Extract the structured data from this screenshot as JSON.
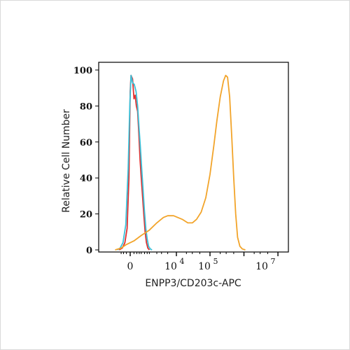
{
  "chart_data": {
    "type": "line",
    "title": "",
    "xlabel": "ENPP3/CD203c-APC",
    "ylabel": "Relative Cell Number",
    "ylim": [
      0,
      100
    ],
    "yticks": [
      "0",
      "20",
      "40",
      "60",
      "80",
      "100"
    ],
    "xticks": [
      {
        "base": "0",
        "exp": ""
      },
      {
        "base": "10",
        "exp": "4"
      },
      {
        "base": "10",
        "exp": "5"
      },
      {
        "base": "10",
        "exp": "7"
      }
    ],
    "x_scale": "biexponential",
    "grid": false,
    "colors": {
      "series1": "#e03030",
      "series2": "#3cc0d8",
      "series3": "#f2a42a"
    },
    "series": [
      {
        "name": "",
        "color": "#e03030",
        "points": [
          [
            -400,
            0
          ],
          [
            -250,
            1
          ],
          [
            -150,
            4
          ],
          [
            -80,
            12
          ],
          [
            -30,
            40
          ],
          [
            0,
            88
          ],
          [
            20,
            97
          ],
          [
            60,
            95
          ],
          [
            100,
            84
          ],
          [
            140,
            86
          ],
          [
            180,
            80
          ],
          [
            230,
            77
          ],
          [
            280,
            65
          ],
          [
            340,
            50
          ],
          [
            400,
            40
          ],
          [
            470,
            30
          ],
          [
            550,
            20
          ],
          [
            640,
            10
          ],
          [
            740,
            4
          ],
          [
            860,
            1
          ],
          [
            1000,
            0
          ]
        ]
      },
      {
        "name": "",
        "color": "#3cc0d8",
        "points": [
          [
            -500,
            0
          ],
          [
            -350,
            1
          ],
          [
            -220,
            4
          ],
          [
            -120,
            14
          ],
          [
            -50,
            45
          ],
          [
            -10,
            80
          ],
          [
            20,
            97
          ],
          [
            60,
            93
          ],
          [
            110,
            92
          ],
          [
            170,
            88
          ],
          [
            230,
            80
          ],
          [
            290,
            68
          ],
          [
            350,
            58
          ],
          [
            420,
            46
          ],
          [
            500,
            34
          ],
          [
            590,
            22
          ],
          [
            690,
            12
          ],
          [
            800,
            6
          ],
          [
            930,
            2
          ],
          [
            1100,
            0.5
          ],
          [
            1300,
            0
          ]
        ]
      },
      {
        "name": "",
        "color": "#f2a42a",
        "points": [
          [
            -650,
            0
          ],
          [
            -300,
            1
          ],
          [
            -100,
            3
          ],
          [
            100,
            5
          ],
          [
            400,
            8
          ],
          [
            1000,
            11
          ],
          [
            2000,
            15
          ],
          [
            3500,
            18
          ],
          [
            5000,
            19
          ],
          [
            8000,
            19
          ],
          [
            11000,
            18
          ],
          [
            15000,
            17
          ],
          [
            22000,
            15
          ],
          [
            30000,
            15
          ],
          [
            40000,
            17
          ],
          [
            55000,
            21
          ],
          [
            75000,
            29
          ],
          [
            100000,
            42
          ],
          [
            130000,
            58
          ],
          [
            160000,
            72
          ],
          [
            200000,
            85
          ],
          [
            250000,
            94
          ],
          [
            290000,
            97
          ],
          [
            330000,
            96
          ],
          [
            380000,
            85
          ],
          [
            440000,
            62
          ],
          [
            500000,
            40
          ],
          [
            570000,
            20
          ],
          [
            650000,
            7
          ],
          [
            760000,
            2
          ],
          [
            900000,
            0.5
          ],
          [
            1100000,
            0
          ]
        ]
      }
    ]
  }
}
